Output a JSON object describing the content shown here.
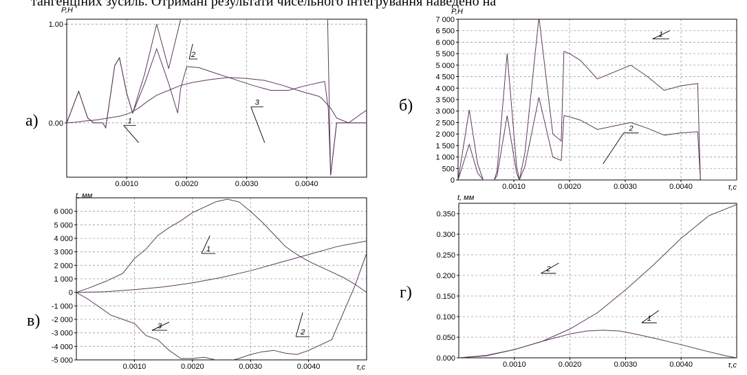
{
  "header_text": "тангенціних зусиль. Отримані результати чисельного інтегрування наведено на",
  "chart_data": [
    {
      "id": "a",
      "panel_label": "а)",
      "type": "line",
      "ylabel": "P,H",
      "xlabel": "",
      "xlim": [
        0,
        0.005
      ],
      "ylim": [
        -0.55,
        1.05
      ],
      "xticks": [
        0.001,
        0.002,
        0.003,
        0.004
      ],
      "xtick_labels": [
        "0.0010",
        "0.0020",
        "0.0030",
        "0.0040"
      ],
      "yticks": [
        0,
        1
      ],
      "ytick_labels": [
        "0.00",
        "1.00"
      ],
      "grid": true,
      "series": [
        {
          "name": "1",
          "x": [
            0,
            0.0002,
            0.0003,
            0.0005,
            0.0007,
            0.0009,
            0.00105,
            0.0012,
            0.00135,
            0.0015,
            0.0017,
            0.0019,
            0.0021,
            0.0024,
            0.0027,
            0.003,
            0.0033,
            0.0036,
            0.0039,
            0.0042,
            0.00425,
            0.0044,
            0.0045,
            0.0047,
            0.005
          ],
          "y": [
            0,
            0.01,
            0.02,
            0.03,
            0.05,
            0.07,
            0.1,
            0.15,
            0.22,
            0.28,
            0.33,
            0.38,
            0.41,
            0.44,
            0.46,
            0.45,
            0.43,
            0.38,
            0.32,
            0.27,
            0.25,
            0.15,
            0.05,
            0.0,
            0.13
          ]
        },
        {
          "name": "2",
          "x": [
            0,
            0.0002,
            0.00035,
            0.00045,
            0.0006,
            0.00065,
            0.0008,
            0.00088,
            0.001,
            0.0011,
            0.0013,
            0.0015,
            0.0017,
            0.00185,
            0.0019,
            0.002,
            0.0022,
            0.0025,
            0.0028,
            0.0031,
            0.0034,
            0.0037,
            0.004,
            0.0043,
            0.00436,
            0.0044,
            0.0045,
            0.005
          ],
          "y": [
            0,
            0.32,
            0.05,
            0.0,
            0.0,
            -0.05,
            0.58,
            0.66,
            0.3,
            0.1,
            0.4,
            0.75,
            0.4,
            0.1,
            0.35,
            0.57,
            0.56,
            0.5,
            0.44,
            0.38,
            0.33,
            0.33,
            0.38,
            0.42,
            0.15,
            -0.53,
            0.0,
            0.0
          ]
        },
        {
          "name": "3",
          "x": [
            0,
            0.0002,
            0.00035,
            0.00045,
            0.0006,
            0.00065,
            0.0008,
            0.00088,
            0.001,
            0.0011,
            0.0013,
            0.0015,
            0.0017,
            0.0019,
            0.00195,
            0.002,
            0.0043,
            0.00435,
            0.0044,
            0.0045,
            0.005
          ],
          "y": [
            0,
            0.32,
            0.05,
            0.0,
            0.0,
            -0.05,
            0.58,
            0.66,
            0.3,
            0.1,
            0.5,
            1.0,
            0.55,
            1.05,
            1.05,
            1.05,
            1.05,
            1.05,
            -0.53,
            0.0,
            0.0
          ]
        }
      ],
      "annotations": [
        {
          "text": "1",
          "x": 0.0012,
          "y": -0.2
        },
        {
          "text": "2",
          "x": 0.0021,
          "y": 0.8
        },
        {
          "text": "3",
          "x": 0.0033,
          "y": -0.2
        }
      ]
    },
    {
      "id": "b",
      "panel_label": "б)",
      "type": "line",
      "ylabel": "P,H",
      "xlabel": "τ,c",
      "xlim": [
        0,
        0.005
      ],
      "ylim": [
        0,
        7000
      ],
      "xticks": [
        0.001,
        0.002,
        0.003,
        0.004
      ],
      "xtick_labels": [
        "0.0010",
        "0.0020",
        "0.0030",
        "0.0040"
      ],
      "yticks": [
        0,
        500,
        1000,
        1500,
        2000,
        2500,
        3000,
        3500,
        4000,
        4500,
        5000,
        5500,
        6000,
        6500,
        7000
      ],
      "ytick_labels": [
        "0",
        "500",
        "1 000",
        "1 500",
        "2 000",
        "2 500",
        "3 000",
        "3 500",
        "4 000",
        "4 500",
        "5 000",
        "5 500",
        "6 000",
        "6 500",
        "7 000"
      ],
      "grid": true,
      "series": [
        {
          "name": "1",
          "x": [
            0,
            0.0002,
            0.00035,
            0.00045,
            0.00065,
            0.0007,
            0.00088,
            0.00105,
            0.0011,
            0.0012,
            0.00145,
            0.0017,
            0.00185,
            0.0019,
            0.002,
            0.0022,
            0.0025,
            0.0028,
            0.0031,
            0.0034,
            0.0037,
            0.004,
            0.0043,
            0.00435,
            0.005
          ],
          "y": [
            0,
            3050,
            700,
            0,
            0,
            400,
            5500,
            600,
            0,
            1200,
            7100,
            2000,
            1700,
            5600,
            5500,
            5200,
            4400,
            4700,
            5000,
            4500,
            3900,
            4100,
            4200,
            0,
            0
          ]
        },
        {
          "name": "2",
          "x": [
            0,
            0.0002,
            0.00035,
            0.00045,
            0.00065,
            0.0007,
            0.00088,
            0.00105,
            0.0011,
            0.0012,
            0.00145,
            0.0017,
            0.00185,
            0.0019,
            0.002,
            0.0022,
            0.0025,
            0.0028,
            0.0031,
            0.0034,
            0.0037,
            0.004,
            0.0043,
            0.00435,
            0.005
          ],
          "y": [
            0,
            1550,
            300,
            0,
            0,
            200,
            2800,
            300,
            0,
            600,
            3600,
            1000,
            850,
            2800,
            2750,
            2600,
            2200,
            2350,
            2500,
            2250,
            1950,
            2050,
            2100,
            0,
            0
          ]
        }
      ],
      "annotations": [
        {
          "text": "1",
          "x": 0.0038,
          "y": 6500
        },
        {
          "text": "2",
          "x": 0.0026,
          "y": 700
        }
      ]
    },
    {
      "id": "v",
      "panel_label": "в)",
      "type": "line",
      "ylabel": "t, мм",
      "xlabel": "τ,c",
      "xlim": [
        0,
        0.005
      ],
      "ylim": [
        -5000,
        7000
      ],
      "xticks": [
        0.001,
        0.002,
        0.003,
        0.004
      ],
      "xtick_labels": [
        "0.0010",
        "0.0020",
        "0.0030",
        "0.0040"
      ],
      "yticks": [
        -5000,
        -4000,
        -3000,
        -2000,
        -1000,
        0,
        1000,
        2000,
        3000,
        4000,
        5000,
        6000
      ],
      "ytick_labels": [
        "-5 000",
        "-4 000",
        "-3 000",
        "-2 000",
        "-1 000",
        "0",
        "1 000",
        "2 000",
        "3 000",
        "4 000",
        "5 000",
        "6 000"
      ],
      "grid": true,
      "series": [
        {
          "name": "1",
          "x": [
            0,
            0.0002,
            0.0005,
            0.0008,
            0.001,
            0.0012,
            0.0014,
            0.0016,
            0.0018,
            0.002,
            0.0022,
            0.0024,
            0.0026,
            0.0028,
            0.003,
            0.0032,
            0.0034,
            0.0036,
            0.0038,
            0.004,
            0.0042,
            0.0044,
            0.0046,
            0.0048,
            0.005
          ],
          "y": [
            0,
            300,
            800,
            1400,
            2500,
            3200,
            4200,
            4800,
            5300,
            5900,
            6300,
            6700,
            6900,
            6700,
            6000,
            5200,
            4300,
            3400,
            2800,
            2300,
            1900,
            1500,
            1100,
            600,
            0
          ]
        },
        {
          "name": "2",
          "x": [
            0,
            0.0005,
            0.001,
            0.0015,
            0.002,
            0.0025,
            0.003,
            0.0035,
            0.004,
            0.0045,
            0.005
          ],
          "y": [
            0,
            50,
            200,
            400,
            700,
            1100,
            1600,
            2200,
            2800,
            3400,
            3800
          ]
        },
        {
          "name": "3",
          "x": [
            0,
            0.0002,
            0.0004,
            0.0006,
            0.0008,
            0.001,
            0.0012,
            0.0014,
            0.0016,
            0.0018,
            0.002,
            0.0022,
            0.0024,
            0.0026,
            0.0028,
            0.003,
            0.0032,
            0.0034,
            0.0036,
            0.0038,
            0.004,
            0.0042,
            0.0044,
            0.0046,
            0.0048,
            0.005
          ],
          "y": [
            0,
            -500,
            -1100,
            -1700,
            -2000,
            -2300,
            -3200,
            -3500,
            -4300,
            -4900,
            -4900,
            -4800,
            -5000,
            -5100,
            -4900,
            -4600,
            -4400,
            -4300,
            -4500,
            -4600,
            -4300,
            -3900,
            -3500,
            -1500,
            500,
            2900
          ]
        }
      ],
      "annotations": [
        {
          "text": "1",
          "x": 0.0023,
          "y": 4200
        },
        {
          "text": "2",
          "x": 0.0039,
          "y": -1500
        },
        {
          "text": "3",
          "x": 0.0016,
          "y": -2200
        }
      ]
    },
    {
      "id": "g",
      "panel_label": "г)",
      "type": "line",
      "ylabel": "t, мм",
      "xlabel": "τ,c",
      "xlim": [
        0,
        0.005
      ],
      "ylim": [
        0,
        0.375
      ],
      "xticks": [
        0.001,
        0.002,
        0.003,
        0.004
      ],
      "xtick_labels": [
        "0.0010",
        "0.0020",
        "0.0030",
        "0.0040"
      ],
      "yticks": [
        0,
        0.05,
        0.1,
        0.15,
        0.2,
        0.25,
        0.3,
        0.35
      ],
      "ytick_labels": [
        "0.000",
        "0.050",
        "0.100",
        "0.150",
        "0.200",
        "0.250",
        "0.300",
        "0.350"
      ],
      "grid": true,
      "series": [
        {
          "name": "1",
          "x": [
            0,
            0.0005,
            0.001,
            0.0015,
            0.002,
            0.0023,
            0.0026,
            0.0029,
            0.0032,
            0.0036,
            0.004,
            0.0044,
            0.0048,
            0.005
          ],
          "y": [
            0,
            0.006,
            0.02,
            0.04,
            0.058,
            0.065,
            0.067,
            0.065,
            0.057,
            0.045,
            0.032,
            0.018,
            0.005,
            0
          ]
        },
        {
          "name": "2",
          "x": [
            0,
            0.0005,
            0.001,
            0.0015,
            0.002,
            0.0025,
            0.003,
            0.0035,
            0.004,
            0.0045,
            0.005
          ],
          "y": [
            0,
            0.005,
            0.02,
            0.04,
            0.07,
            0.11,
            0.165,
            0.225,
            0.29,
            0.345,
            0.372
          ]
        }
      ],
      "annotations": [
        {
          "text": "1",
          "x": 0.0036,
          "y": 0.115
        },
        {
          "text": "2",
          "x": 0.0018,
          "y": 0.23
        }
      ]
    }
  ]
}
